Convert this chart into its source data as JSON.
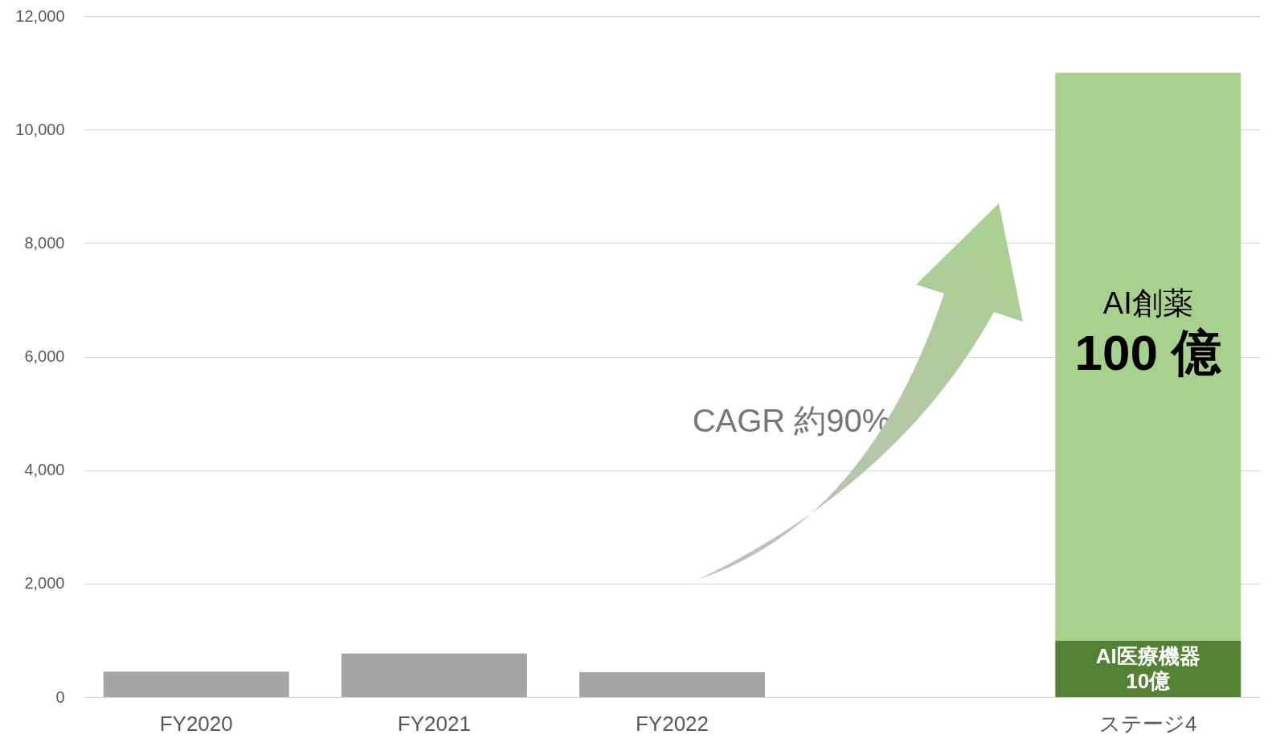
{
  "chart_data": {
    "type": "bar",
    "stacked": true,
    "categories": [
      "FY2020",
      "FY2021",
      "FY2022",
      null,
      "ステージ4"
    ],
    "series": [
      {
        "color": "#a5a5a5",
        "values": [
          450,
          770,
          440,
          null,
          null
        ]
      },
      {
        "color": "#548235",
        "values": [
          null,
          null,
          null,
          null,
          1000
        ],
        "value_labels": [
          null,
          null,
          null,
          null,
          "AI医療機器\n10億"
        ]
      },
      {
        "color": "#a9d18e",
        "values": [
          null,
          null,
          null,
          null,
          10000
        ],
        "value_labels": [
          null,
          null,
          null,
          null,
          "AI創薬\n100 億"
        ]
      }
    ],
    "ylim": [
      0,
      12000
    ],
    "yticks": [
      0,
      {
        "value": 2000,
        "label": "2,000"
      },
      {
        "value": 4000,
        "label": "4,000"
      },
      {
        "value": 6000,
        "label": "6,000"
      },
      {
        "value": 8000,
        "label": "8,000"
      },
      {
        "value": 10000,
        "label": "10,000"
      },
      {
        "value": 12000,
        "label": "12,000"
      }
    ],
    "grid": "y",
    "legend": false,
    "annotations": [
      "CAGR 約90%"
    ]
  }
}
